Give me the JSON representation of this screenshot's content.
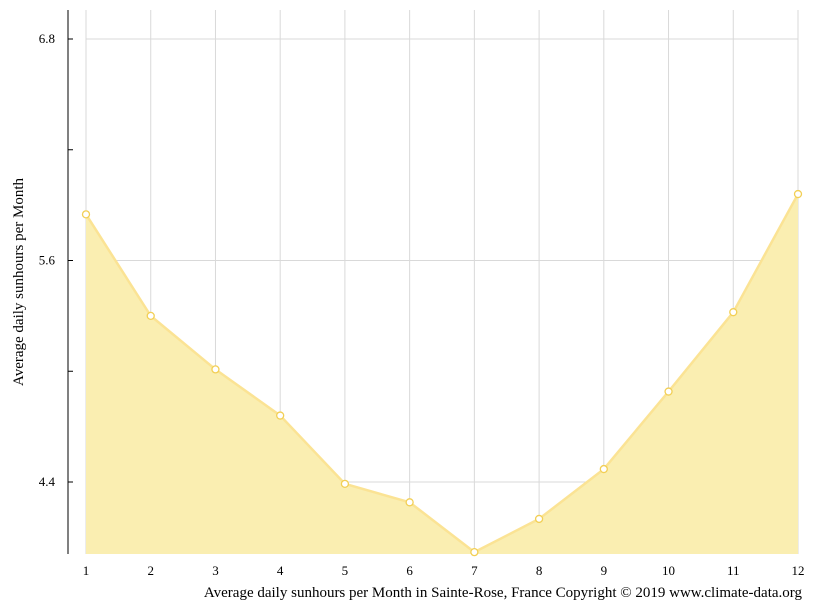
{
  "chart_data": {
    "type": "area",
    "title": "",
    "caption": "Average daily sunhours per Month in Sainte-Rose, France Copyright © 2019 www.climate-data.org",
    "xlabel": "",
    "ylabel": "Average daily sunhours per Month",
    "x": [
      1,
      2,
      3,
      4,
      5,
      6,
      7,
      8,
      9,
      10,
      11,
      12
    ],
    "x_tick_labels": [
      "1",
      "2",
      "3",
      "4",
      "5",
      "6",
      "7",
      "8",
      "9",
      "10",
      "11",
      "12"
    ],
    "y_tick_labels": [
      "6.8",
      "5.6",
      "4.4"
    ],
    "y_ticks": [
      6.8,
      5.6,
      4.4
    ],
    "ylim": [
      4.02,
      6.95
    ],
    "grid": true,
    "colors": {
      "fill": "#faeeb1",
      "line": "#fbe394",
      "marker_fill": "#ffffff",
      "marker_stroke": "#f2cf55",
      "grid": "#d9d9d9",
      "axis": "#000000"
    },
    "series": [
      {
        "values": [
          5.85,
          5.3,
          5.01,
          4.76,
          4.39,
          4.29,
          4.02,
          4.2,
          4.47,
          4.89,
          5.32,
          5.96
        ]
      }
    ]
  }
}
